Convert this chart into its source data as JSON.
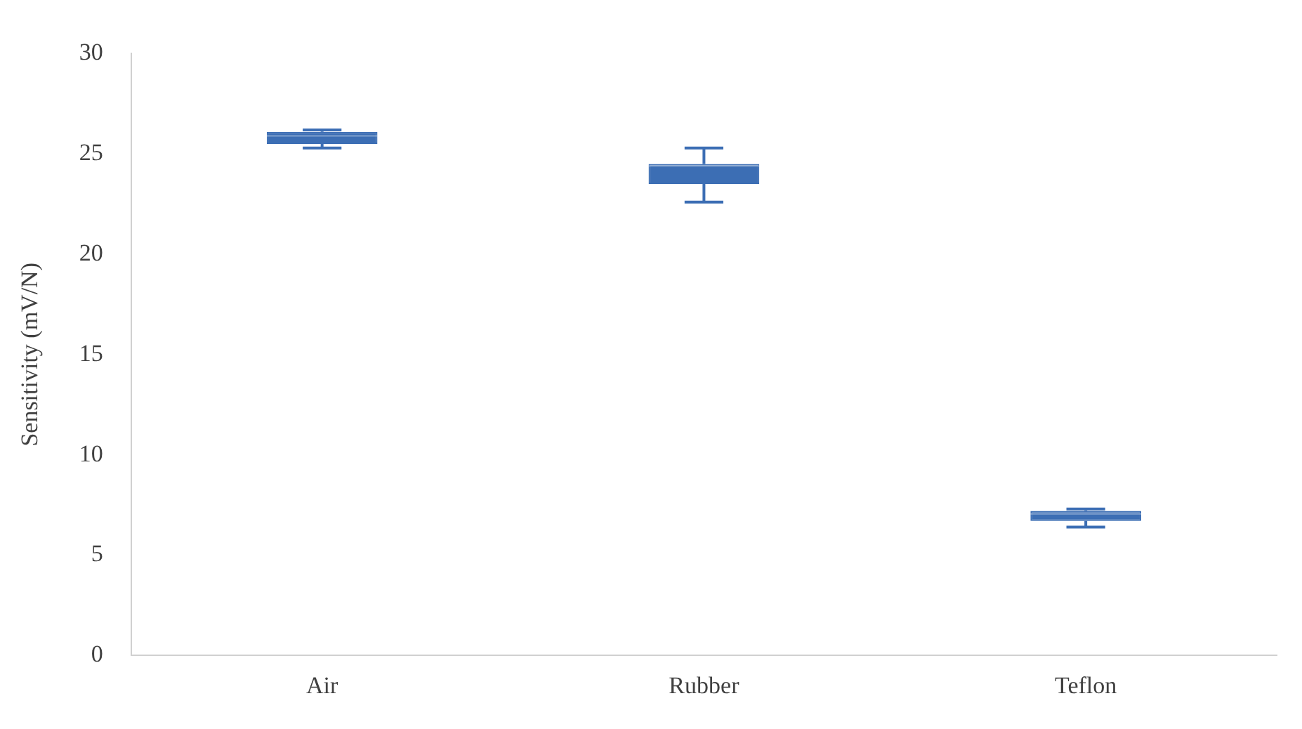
{
  "chart_data": {
    "type": "box",
    "ylabel": "Sensitivity (mV/N)",
    "categories": [
      "Air",
      "Rubber",
      "Teflon"
    ],
    "boxes": [
      {
        "low": 25.3,
        "q1": 25.5,
        "median": 25.9,
        "q3": 26.1,
        "high": 26.2
      },
      {
        "low": 22.6,
        "q1": 23.5,
        "median": 24.4,
        "q3": 24.5,
        "high": 25.3
      },
      {
        "low": 6.4,
        "q1": 6.7,
        "median": 7.05,
        "q3": 7.2,
        "high": 7.3
      }
    ],
    "color": "#3c6eb4",
    "ylim": [
      0,
      30
    ],
    "yticks": [
      0,
      5,
      10,
      15,
      20,
      25,
      30
    ],
    "grid": false,
    "legend": false
  }
}
